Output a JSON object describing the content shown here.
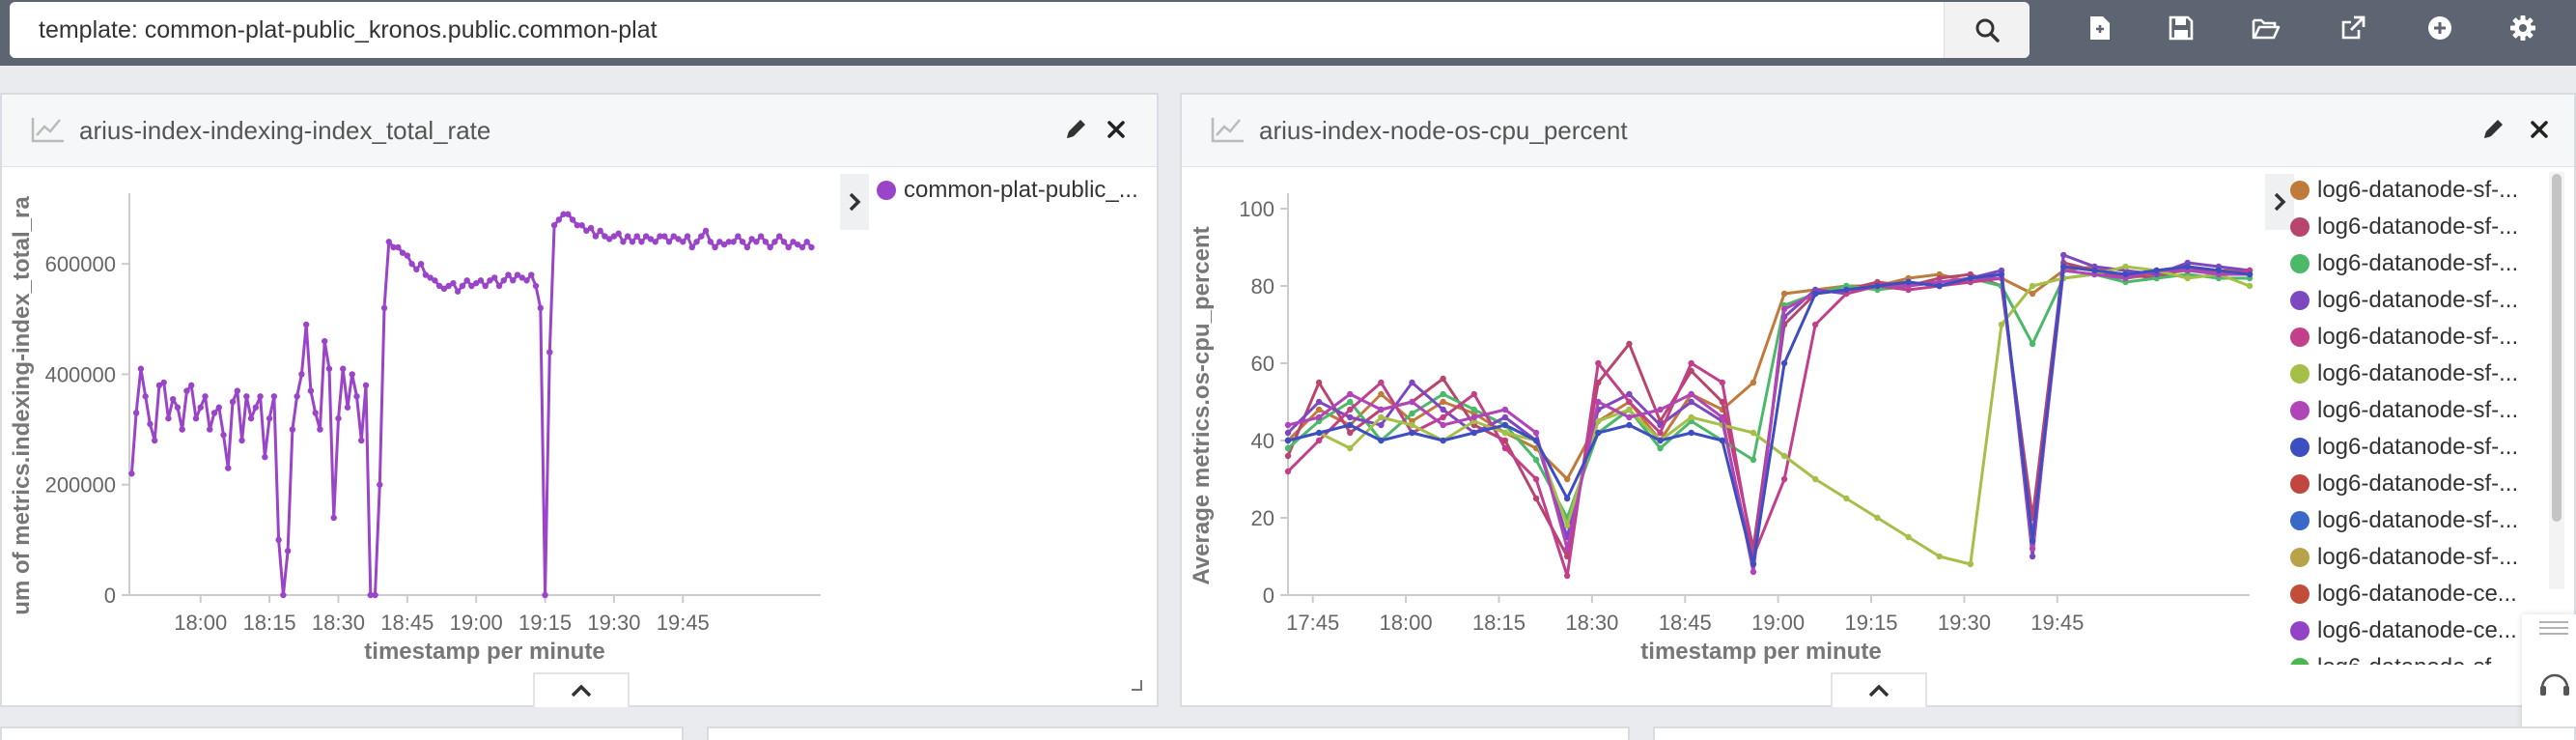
{
  "search": {
    "value": "template: common-plat-public_kronos.public.common-plat"
  },
  "toolbar": {
    "icons": [
      "search-icon",
      "new-dashboard-icon",
      "save-icon",
      "open-folder-icon",
      "share-icon",
      "add-icon",
      "settings-icon"
    ]
  },
  "colors": {
    "topbar": "#5c6571",
    "purple": "#9a44c9",
    "scroll_thumb": "#c4c4c4"
  },
  "panel1": {
    "title": "arius-index-indexing-index_total_rate",
    "legend": [
      "common-plat-public_..."
    ],
    "legend_colors": [
      "#9a44c9"
    ],
    "chart_data": {
      "type": "line",
      "xlabel": "timestamp per minute",
      "ylabel": "um of metrics.indexing-index_total_ra",
      "x_ticks": [
        "18:00",
        "18:15",
        "18:30",
        "18:45",
        "19:00",
        "19:15",
        "19:30",
        "19:45"
      ],
      "y_ticks": [
        "0",
        "200000",
        "400000",
        "600000"
      ],
      "ylim": [
        0,
        700000
      ],
      "series": [
        {
          "name": "common-plat-public_...",
          "x": [
            1065,
            1066,
            1067,
            1068,
            1069,
            1070,
            1071,
            1072,
            1073,
            1074,
            1075,
            1076,
            1077,
            1078,
            1079,
            1080,
            1081,
            1082,
            1083,
            1084,
            1085,
            1086,
            1087,
            1088,
            1089,
            1090,
            1091,
            1092,
            1093,
            1094,
            1095,
            1096,
            1097,
            1098,
            1099,
            1100,
            1101,
            1102,
            1103,
            1104,
            1105,
            1106,
            1107,
            1108,
            1109,
            1110,
            1111,
            1112,
            1113,
            1114,
            1115,
            1116,
            1117,
            1118,
            1119,
            1120,
            1121,
            1122,
            1123,
            1124,
            1125,
            1126,
            1127,
            1128,
            1129,
            1130,
            1131,
            1132,
            1133,
            1134,
            1135,
            1136,
            1137,
            1138,
            1139,
            1140,
            1141,
            1142,
            1143,
            1144,
            1145,
            1146,
            1147,
            1148,
            1149,
            1150,
            1151,
            1152,
            1153,
            1154,
            1155,
            1156,
            1157,
            1158,
            1159,
            1160,
            1161,
            1162,
            1163,
            1164,
            1165,
            1166,
            1167,
            1168,
            1169,
            1170,
            1171,
            1172,
            1173,
            1174,
            1175,
            1176,
            1177,
            1178,
            1179,
            1180,
            1181,
            1182,
            1183,
            1184,
            1185,
            1186,
            1187,
            1188,
            1189,
            1190,
            1191,
            1192,
            1193,
            1194,
            1195,
            1196,
            1197,
            1198,
            1199,
            1200,
            1201,
            1202,
            1203,
            1204,
            1205,
            1206,
            1207,
            1208,
            1209,
            1210,
            1211,
            1212,
            1213
          ],
          "values": [
            220000,
            330000,
            410000,
            360000,
            310000,
            280000,
            380000,
            385000,
            320000,
            355000,
            340000,
            300000,
            370000,
            380000,
            320000,
            340000,
            360000,
            300000,
            330000,
            340000,
            290000,
            230000,
            350000,
            370000,
            280000,
            360000,
            320000,
            340000,
            360000,
            250000,
            320000,
            360000,
            100000,
            0,
            80000,
            300000,
            360000,
            400000,
            490000,
            370000,
            330000,
            300000,
            460000,
            410000,
            140000,
            320000,
            410000,
            340000,
            400000,
            360000,
            280000,
            380000,
            0,
            0,
            200000,
            520000,
            640000,
            630000,
            630000,
            620000,
            615000,
            600000,
            590000,
            600000,
            580000,
            575000,
            570000,
            560000,
            555000,
            560000,
            565000,
            550000,
            560000,
            570000,
            560000,
            565000,
            570000,
            560000,
            570000,
            575000,
            560000,
            570000,
            580000,
            570000,
            580000,
            575000,
            570000,
            580000,
            560000,
            520000,
            0,
            440000,
            670000,
            680000,
            690000,
            690000,
            680000,
            670000,
            670000,
            660000,
            665000,
            650000,
            660000,
            650000,
            645000,
            650000,
            655000,
            640000,
            650000,
            640000,
            650000,
            640000,
            650000,
            645000,
            640000,
            650000,
            650000,
            640000,
            650000,
            645000,
            640000,
            650000,
            630000,
            640000,
            650000,
            660000,
            640000,
            630000,
            640000,
            635000,
            640000,
            640000,
            650000,
            640000,
            630000,
            645000,
            640000,
            650000,
            640000,
            630000,
            640000,
            650000,
            640000,
            630000,
            640000,
            635000,
            630000,
            640000,
            630000
          ],
          "color": "#9a44c9"
        }
      ]
    }
  },
  "panel2": {
    "title": "arius-index-node-os-cpu_percent",
    "legend": [
      "log6-datanode-sf-...",
      "log6-datanode-sf-...",
      "log6-datanode-sf-...",
      "log6-datanode-sf-...",
      "log6-datanode-sf-...",
      "log6-datanode-sf-...",
      "log6-datanode-sf-...",
      "log6-datanode-sf-...",
      "log6-datanode-sf-...",
      "log6-datanode-sf-...",
      "log6-datanode-sf-...",
      "log6-datanode-ce...",
      "log6-datanode-ce...",
      "log6-datanode-sf-..."
    ],
    "legend_colors": [
      "#c07a3a",
      "#b8456e",
      "#4cb86a",
      "#7e47c2",
      "#c23f8a",
      "#a6bf48",
      "#b045b8",
      "#3d4fc0",
      "#c0463f",
      "#3a68c8",
      "#b8a24a",
      "#c24e3a",
      "#9343c7",
      "#4ab84e"
    ],
    "chart_data": {
      "type": "line",
      "xlabel": "timestamp per minute",
      "ylabel": "Average metrics.os-cpu_percent",
      "x_ticks": [
        "17:45",
        "18:00",
        "18:15",
        "18:30",
        "18:45",
        "19:00",
        "19:15",
        "19:30",
        "19:45"
      ],
      "y_ticks": [
        "0",
        "20",
        "40",
        "60",
        "80",
        "100"
      ],
      "ylim": [
        0,
        100
      ],
      "series": [
        {
          "name": "log6-datanode-sf-...",
          "x": [
            1061,
            1066,
            1071,
            1076,
            1081,
            1086,
            1091,
            1096,
            1101,
            1106,
            1111,
            1116,
            1121,
            1126,
            1131,
            1136,
            1141,
            1146,
            1151,
            1156,
            1161,
            1166,
            1171,
            1176,
            1181,
            1186,
            1191,
            1196,
            1201,
            1206,
            1211,
            1216
          ],
          "values": [
            40,
            48,
            44,
            52,
            45,
            50,
            47,
            42,
            38,
            30,
            45,
            50,
            40,
            52,
            48,
            55,
            78,
            79,
            80,
            80,
            82,
            83,
            81,
            82,
            78,
            84,
            85,
            82,
            83,
            84,
            84,
            84
          ]
        },
        {
          "name": "log6-datanode-sf-...",
          "x": [
            1061,
            1066,
            1071,
            1076,
            1081,
            1086,
            1091,
            1096,
            1101,
            1106,
            1111,
            1116,
            1121,
            1126,
            1131,
            1136,
            1141,
            1146,
            1151,
            1156,
            1161,
            1166,
            1171,
            1176,
            1181,
            1186,
            1191,
            1196,
            1201,
            1206,
            1211,
            1216
          ],
          "values": [
            36,
            55,
            42,
            48,
            50,
            56,
            44,
            40,
            25,
            10,
            55,
            65,
            45,
            58,
            50,
            12,
            70,
            78,
            79,
            81,
            80,
            82,
            83,
            80,
            20,
            86,
            84,
            83,
            82,
            85,
            84,
            83
          ]
        },
        {
          "name": "log6-datanode-sf-...",
          "x": [
            1061,
            1066,
            1071,
            1076,
            1081,
            1086,
            1091,
            1096,
            1101,
            1106,
            1111,
            1116,
            1121,
            1126,
            1131,
            1136,
            1141,
            1146,
            1151,
            1156,
            1161,
            1166,
            1171,
            1176,
            1181,
            1186,
            1191,
            1196,
            1201,
            1206,
            1211,
            1216
          ],
          "values": [
            38,
            45,
            50,
            40,
            47,
            52,
            48,
            44,
            35,
            20,
            42,
            48,
            38,
            45,
            40,
            35,
            75,
            78,
            80,
            79,
            80,
            81,
            82,
            80,
            65,
            82,
            83,
            81,
            82,
            83,
            82,
            82
          ]
        },
        {
          "name": "log6-datanode-sf-...",
          "x": [
            1061,
            1066,
            1071,
            1076,
            1081,
            1086,
            1091,
            1096,
            1101,
            1106,
            1111,
            1116,
            1121,
            1126,
            1131,
            1136,
            1141,
            1146,
            1151,
            1156,
            1161,
            1166,
            1171,
            1176,
            1181,
            1186,
            1191,
            1196,
            1201,
            1206,
            1211,
            1216
          ],
          "values": [
            42,
            50,
            46,
            44,
            55,
            48,
            42,
            46,
            40,
            15,
            48,
            52,
            44,
            50,
            45,
            8,
            72,
            79,
            78,
            80,
            81,
            80,
            82,
            84,
            10,
            88,
            85,
            84,
            83,
            86,
            85,
            84
          ]
        },
        {
          "name": "log6-datanode-sf-...",
          "x": [
            1061,
            1066,
            1071,
            1076,
            1081,
            1086,
            1091,
            1096,
            1101,
            1106,
            1111,
            1116,
            1121,
            1126,
            1131,
            1136,
            1141,
            1146,
            1151,
            1156,
            1161,
            1166,
            1171,
            1176,
            1181,
            1186,
            1191,
            1196,
            1201,
            1206,
            1211,
            1216
          ],
          "values": [
            32,
            40,
            48,
            55,
            42,
            46,
            52,
            38,
            30,
            5,
            60,
            50,
            42,
            60,
            55,
            10,
            30,
            70,
            78,
            80,
            79,
            80,
            81,
            82,
            15,
            85,
            84,
            82,
            84,
            85,
            83,
            84
          ]
        },
        {
          "name": "log6-datanode-sf-...",
          "x": [
            1061,
            1066,
            1071,
            1076,
            1081,
            1086,
            1091,
            1096,
            1101,
            1106,
            1111,
            1116,
            1121,
            1126,
            1131,
            1136,
            1141,
            1146,
            1151,
            1156,
            1161,
            1166,
            1171,
            1176,
            1181,
            1186,
            1191,
            1196,
            1201,
            1206,
            1211,
            1216
          ],
          "values": [
            40,
            42,
            38,
            46,
            44,
            40,
            45,
            42,
            40,
            18,
            45,
            48,
            40,
            46,
            44,
            42,
            36,
            30,
            25,
            20,
            15,
            10,
            8,
            70,
            80,
            82,
            83,
            85,
            84,
            82,
            83,
            80
          ]
        },
        {
          "name": "log6-datanode-sf-...",
          "x": [
            1061,
            1066,
            1071,
            1076,
            1081,
            1086,
            1091,
            1096,
            1101,
            1106,
            1111,
            1116,
            1121,
            1126,
            1131,
            1136,
            1141,
            1146,
            1151,
            1156,
            1161,
            1166,
            1171,
            1176,
            1181,
            1186,
            1191,
            1196,
            1201,
            1206,
            1211,
            1216
          ],
          "values": [
            44,
            46,
            52,
            48,
            50,
            44,
            46,
            48,
            42,
            12,
            50,
            46,
            48,
            52,
            46,
            6,
            74,
            78,
            79,
            80,
            80,
            81,
            82,
            82,
            12,
            84,
            83,
            82,
            84,
            84,
            83,
            83
          ]
        },
        {
          "name": "log6-datanode-sf-...",
          "x": [
            1061,
            1066,
            1071,
            1076,
            1081,
            1086,
            1091,
            1096,
            1101,
            1106,
            1111,
            1116,
            1121,
            1126,
            1131,
            1136,
            1141,
            1146,
            1151,
            1156,
            1161,
            1166,
            1171,
            1176,
            1181,
            1186,
            1191,
            1196,
            1201,
            1206,
            1211,
            1216
          ],
          "values": [
            40,
            42,
            44,
            40,
            42,
            40,
            42,
            44,
            40,
            25,
            42,
            44,
            40,
            42,
            40,
            8,
            60,
            78,
            79,
            80,
            81,
            80,
            82,
            83,
            14,
            85,
            84,
            83,
            84,
            85,
            84,
            83
          ]
        }
      ]
    }
  }
}
